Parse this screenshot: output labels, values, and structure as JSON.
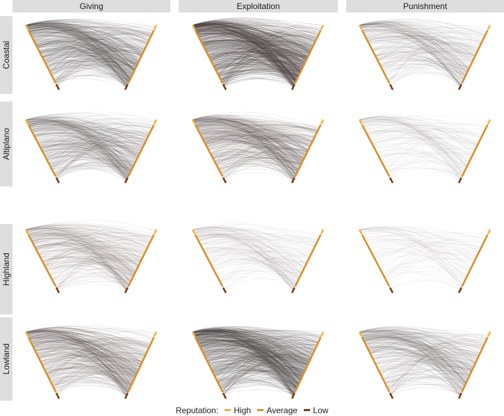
{
  "chart_data": {
    "type": "network-arc",
    "columns": [
      "Giving",
      "Exploitation",
      "Punishment"
    ],
    "rows": [
      "Coastal",
      "Altiplano",
      "Highland",
      "Lowland"
    ],
    "legend": {
      "title": "Reputation:",
      "levels": [
        {
          "name": "High",
          "color": "#f0b33c"
        },
        {
          "name": "Average",
          "color": "#d7902a"
        },
        {
          "name": "Low",
          "color": "#7a3e12"
        }
      ]
    },
    "link_color": "#4a3f3f",
    "link_density": {
      "Coastal": {
        "Giving": 0.7,
        "Exploitation": 1.0,
        "Punishment": 0.35
      },
      "Altiplano": {
        "Giving": 0.55,
        "Exploitation": 0.6,
        "Punishment": 0.15
      },
      "Highland": {
        "Giving": 0.4,
        "Exploitation": 0.2,
        "Punishment": 0.1
      },
      "Lowland": {
        "Giving": 0.6,
        "Exploitation": 0.9,
        "Punishment": 0.45
      }
    }
  }
}
